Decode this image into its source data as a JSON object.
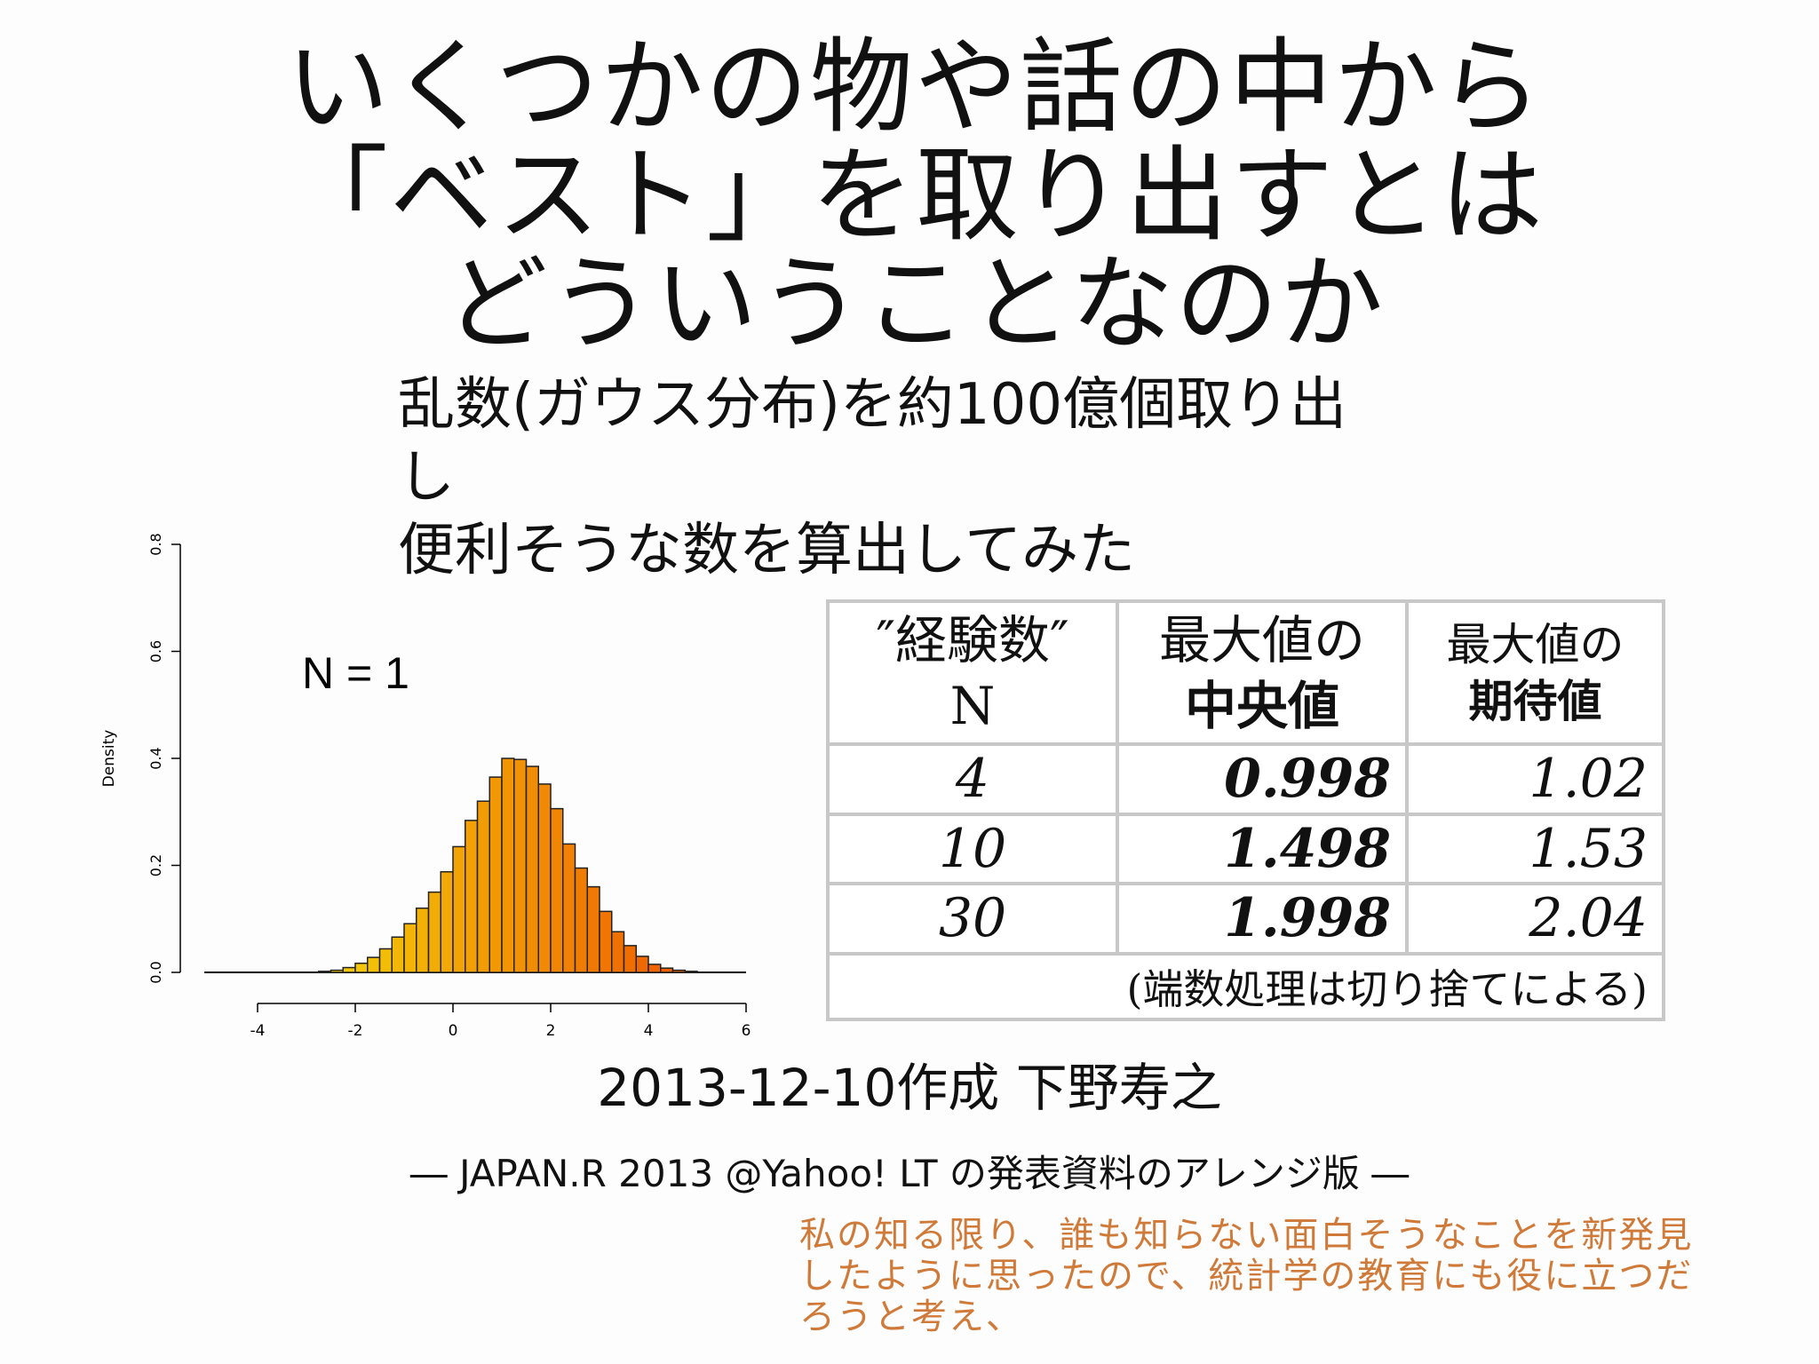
{
  "title": {
    "line1": "いくつかの物や話の中から",
    "line2": "「ベスト」を取り出すとは",
    "line3": "どういうことなのか"
  },
  "subtitle": {
    "line1": "乱数(ガウス分布)を約100億個取り出",
    "line2": "し",
    "line3": "便利そうな数を算出してみた"
  },
  "chart_data": {
    "type": "bar",
    "title": "N = 1",
    "xlabel": "",
    "ylabel": "Density",
    "xlim": [
      -4,
      6
    ],
    "ylim": [
      0,
      0.8
    ],
    "x_ticks": [
      "-4",
      "-2",
      "0",
      "2",
      "4",
      "6"
    ],
    "y_ticks": [
      "0.0",
      "0.2",
      "0.4",
      "0.6",
      "0.8"
    ],
    "bin_width": 0.25,
    "bin_start": -4.0,
    "values": [
      0.0,
      0.0,
      0.0,
      0.0,
      0.0,
      0.002,
      0.004,
      0.009,
      0.017,
      0.028,
      0.044,
      0.066,
      0.091,
      0.12,
      0.15,
      0.188,
      0.235,
      0.284,
      0.32,
      0.365,
      0.4,
      0.398,
      0.385,
      0.352,
      0.306,
      0.24,
      0.195,
      0.16,
      0.114,
      0.076,
      0.05,
      0.03,
      0.015,
      0.008,
      0.004,
      0.002,
      0.0,
      0.0,
      0.0,
      0.0
    ],
    "bar_colors": [
      "#f5e30a",
      "#ee4a00"
    ]
  },
  "table": {
    "headers": [
      {
        "line1": "″経験数″",
        "line2": "N"
      },
      {
        "line1": "最大値の",
        "line2": "中央値"
      },
      {
        "line1": "最大値の",
        "line2": "期待値"
      }
    ],
    "rows": [
      {
        "n": "4",
        "median": "0.998",
        "expected": "1.02"
      },
      {
        "n": "10",
        "median": "1.498",
        "expected": "1.53"
      },
      {
        "n": "30",
        "median": "1.998",
        "expected": "2.04"
      }
    ],
    "note": "(端数処理は切り捨てによる)"
  },
  "date_author": "2013-12-10作成 下野寿之",
  "source_note": "― JAPAN.R 2013 @Yahoo!  LT の発表資料のアレンジ版 ―",
  "comment": {
    "line1": "私の知る限り、誰も知らない面白そうなことを新発見",
    "line2": "したように思ったので、統計学の教育にも役に立つだ",
    "line3": "ろうと考え、"
  },
  "colors": {
    "comment": "#d07a3a",
    "table_border": "#c8c8c8"
  }
}
